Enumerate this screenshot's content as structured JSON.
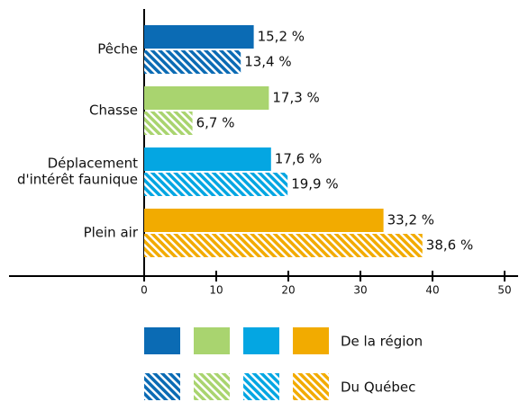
{
  "chart_data": {
    "type": "hbar",
    "categories": [
      [
        "Pêche"
      ],
      [
        "Chasse"
      ],
      [
        "Déplacement",
        "d'intérêt faunique"
      ],
      [
        "Plein air"
      ]
    ],
    "colors": [
      "#0b6bb4",
      "#a9d46f",
      "#04a6e2",
      "#f2ab00"
    ],
    "series": [
      {
        "name": "De la région",
        "hatch": false,
        "values": [
          15.2,
          17.3,
          17.6,
          33.2
        ],
        "value_labels": [
          "15,2 %",
          "17,3 %",
          "17,6 %",
          "33,2 %"
        ]
      },
      {
        "name": "Du Québec",
        "hatch": true,
        "values": [
          13.4,
          6.7,
          19.9,
          38.6
        ],
        "value_labels": [
          "13,4 %",
          "6,7 %",
          "19,9 %",
          "38,6 %"
        ]
      }
    ],
    "xlim": [
      0,
      50
    ],
    "xticks": [
      0,
      10,
      20,
      30,
      40,
      50
    ]
  }
}
